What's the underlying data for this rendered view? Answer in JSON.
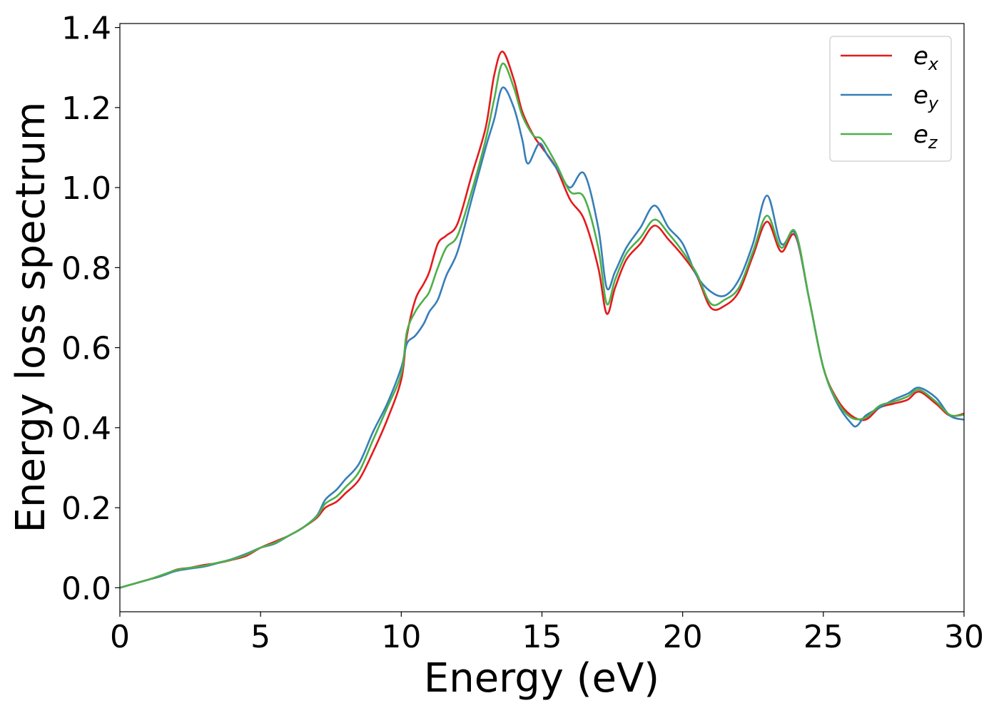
{
  "chart_data": {
    "type": "line",
    "xlabel": "Energy (eV)",
    "ylabel": "Energy loss spectrum",
    "xlim": [
      0,
      30
    ],
    "ylim": [
      -0.06,
      1.41
    ],
    "x_ticks": [
      0,
      5,
      10,
      15,
      20,
      25,
      30
    ],
    "x_tick_labels": [
      "0",
      "5",
      "10",
      "15",
      "20",
      "25",
      "30"
    ],
    "y_ticks": [
      0.0,
      0.2,
      0.4,
      0.6,
      0.8,
      1.0,
      1.2,
      1.4
    ],
    "y_tick_labels": [
      "0.0",
      "0.2",
      "0.4",
      "0.6",
      "0.8",
      "1.0",
      "1.2",
      "1.4"
    ],
    "grid": false,
    "legend_position": "top-right",
    "series": [
      {
        "name": "e_x",
        "legend_base": "e",
        "legend_sub": "x",
        "color": "#e41a1c",
        "points": [
          [
            0,
            0.0
          ],
          [
            0.5,
            0.01
          ],
          [
            1,
            0.02
          ],
          [
            1.5,
            0.03
          ],
          [
            2,
            0.045
          ],
          [
            2.5,
            0.05
          ],
          [
            3,
            0.057
          ],
          [
            3.5,
            0.062
          ],
          [
            4,
            0.07
          ],
          [
            4.5,
            0.08
          ],
          [
            5,
            0.1
          ],
          [
            5.5,
            0.115
          ],
          [
            6,
            0.13
          ],
          [
            6.5,
            0.15
          ],
          [
            7,
            0.175
          ],
          [
            7.3,
            0.2
          ],
          [
            7.7,
            0.215
          ],
          [
            8,
            0.235
          ],
          [
            8.5,
            0.27
          ],
          [
            9,
            0.34
          ],
          [
            9.5,
            0.42
          ],
          [
            10,
            0.52
          ],
          [
            10.2,
            0.63
          ],
          [
            10.5,
            0.72
          ],
          [
            10.8,
            0.76
          ],
          [
            11,
            0.79
          ],
          [
            11.3,
            0.86
          ],
          [
            11.6,
            0.88
          ],
          [
            12,
            0.91
          ],
          [
            12.5,
            1.03
          ],
          [
            13,
            1.15
          ],
          [
            13.3,
            1.28
          ],
          [
            13.6,
            1.34
          ],
          [
            14,
            1.27
          ],
          [
            14.3,
            1.19
          ],
          [
            14.7,
            1.13
          ],
          [
            15,
            1.1
          ],
          [
            15.5,
            1.05
          ],
          [
            16,
            0.97
          ],
          [
            16.5,
            0.92
          ],
          [
            17,
            0.8
          ],
          [
            17.3,
            0.685
          ],
          [
            17.6,
            0.75
          ],
          [
            18,
            0.82
          ],
          [
            18.5,
            0.86
          ],
          [
            19,
            0.905
          ],
          [
            19.5,
            0.87
          ],
          [
            20,
            0.83
          ],
          [
            20.5,
            0.78
          ],
          [
            21,
            0.7
          ],
          [
            21.5,
            0.705
          ],
          [
            22,
            0.74
          ],
          [
            22.5,
            0.83
          ],
          [
            23,
            0.915
          ],
          [
            23.5,
            0.84
          ],
          [
            24,
            0.88
          ],
          [
            24.5,
            0.72
          ],
          [
            25,
            0.55
          ],
          [
            25.5,
            0.47
          ],
          [
            26,
            0.43
          ],
          [
            26.5,
            0.42
          ],
          [
            27,
            0.45
          ],
          [
            27.5,
            0.46
          ],
          [
            28,
            0.47
          ],
          [
            28.4,
            0.49
          ],
          [
            29,
            0.46
          ],
          [
            29.5,
            0.43
          ],
          [
            30,
            0.435
          ]
        ]
      },
      {
        "name": "e_y",
        "legend_base": "e",
        "legend_sub": "y",
        "color": "#377eb8",
        "points": [
          [
            0,
            0.0
          ],
          [
            0.5,
            0.01
          ],
          [
            1,
            0.02
          ],
          [
            1.5,
            0.03
          ],
          [
            2,
            0.042
          ],
          [
            2.5,
            0.048
          ],
          [
            3,
            0.053
          ],
          [
            3.5,
            0.062
          ],
          [
            4,
            0.072
          ],
          [
            4.5,
            0.085
          ],
          [
            5,
            0.1
          ],
          [
            5.5,
            0.11
          ],
          [
            6,
            0.13
          ],
          [
            6.5,
            0.15
          ],
          [
            7,
            0.18
          ],
          [
            7.3,
            0.22
          ],
          [
            7.7,
            0.245
          ],
          [
            8,
            0.27
          ],
          [
            8.5,
            0.31
          ],
          [
            9,
            0.39
          ],
          [
            9.5,
            0.46
          ],
          [
            10,
            0.55
          ],
          [
            10.2,
            0.61
          ],
          [
            10.5,
            0.63
          ],
          [
            10.8,
            0.66
          ],
          [
            11,
            0.69
          ],
          [
            11.3,
            0.72
          ],
          [
            11.6,
            0.78
          ],
          [
            12,
            0.84
          ],
          [
            12.5,
            0.97
          ],
          [
            13,
            1.1
          ],
          [
            13.3,
            1.17
          ],
          [
            13.6,
            1.25
          ],
          [
            14,
            1.2
          ],
          [
            14.3,
            1.12
          ],
          [
            14.5,
            1.06
          ],
          [
            14.9,
            1.11
          ],
          [
            15.2,
            1.08
          ],
          [
            15.6,
            1.04
          ],
          [
            16,
            1.0
          ],
          [
            16.5,
            1.035
          ],
          [
            17,
            0.9
          ],
          [
            17.3,
            0.75
          ],
          [
            17.6,
            0.79
          ],
          [
            18,
            0.85
          ],
          [
            18.5,
            0.9
          ],
          [
            19,
            0.955
          ],
          [
            19.5,
            0.9
          ],
          [
            20,
            0.86
          ],
          [
            20.5,
            0.78
          ],
          [
            21,
            0.74
          ],
          [
            21.5,
            0.73
          ],
          [
            22,
            0.77
          ],
          [
            22.5,
            0.86
          ],
          [
            23,
            0.98
          ],
          [
            23.5,
            0.86
          ],
          [
            24,
            0.885
          ],
          [
            24.5,
            0.72
          ],
          [
            25,
            0.55
          ],
          [
            25.5,
            0.46
          ],
          [
            26,
            0.41
          ],
          [
            26.2,
            0.405
          ],
          [
            26.5,
            0.43
          ],
          [
            27,
            0.45
          ],
          [
            27.5,
            0.47
          ],
          [
            28,
            0.485
          ],
          [
            28.4,
            0.5
          ],
          [
            29,
            0.475
          ],
          [
            29.5,
            0.43
          ],
          [
            30,
            0.42
          ]
        ]
      },
      {
        "name": "e_z",
        "legend_base": "e",
        "legend_sub": "z",
        "color": "#4daf4a",
        "points": [
          [
            0,
            0.0
          ],
          [
            0.5,
            0.01
          ],
          [
            1,
            0.02
          ],
          [
            1.5,
            0.032
          ],
          [
            2,
            0.044
          ],
          [
            2.5,
            0.05
          ],
          [
            3,
            0.055
          ],
          [
            3.5,
            0.063
          ],
          [
            4,
            0.071
          ],
          [
            4.5,
            0.083
          ],
          [
            5,
            0.1
          ],
          [
            5.5,
            0.112
          ],
          [
            6,
            0.13
          ],
          [
            6.5,
            0.15
          ],
          [
            7,
            0.178
          ],
          [
            7.3,
            0.21
          ],
          [
            7.7,
            0.228
          ],
          [
            8,
            0.25
          ],
          [
            8.5,
            0.29
          ],
          [
            9,
            0.37
          ],
          [
            9.5,
            0.45
          ],
          [
            10,
            0.535
          ],
          [
            10.2,
            0.64
          ],
          [
            10.5,
            0.69
          ],
          [
            10.8,
            0.72
          ],
          [
            11,
            0.74
          ],
          [
            11.3,
            0.8
          ],
          [
            11.6,
            0.85
          ],
          [
            12,
            0.88
          ],
          [
            12.5,
            0.99
          ],
          [
            13,
            1.12
          ],
          [
            13.3,
            1.22
          ],
          [
            13.6,
            1.31
          ],
          [
            14,
            1.25
          ],
          [
            14.3,
            1.18
          ],
          [
            14.7,
            1.13
          ],
          [
            15,
            1.12
          ],
          [
            15.5,
            1.06
          ],
          [
            16,
            0.99
          ],
          [
            16.5,
            0.975
          ],
          [
            17,
            0.85
          ],
          [
            17.3,
            0.71
          ],
          [
            17.6,
            0.77
          ],
          [
            18,
            0.835
          ],
          [
            18.5,
            0.875
          ],
          [
            19,
            0.92
          ],
          [
            19.5,
            0.885
          ],
          [
            20,
            0.84
          ],
          [
            20.5,
            0.785
          ],
          [
            21,
            0.71
          ],
          [
            21.5,
            0.72
          ],
          [
            22,
            0.75
          ],
          [
            22.5,
            0.84
          ],
          [
            23,
            0.93
          ],
          [
            23.5,
            0.85
          ],
          [
            24,
            0.89
          ],
          [
            24.5,
            0.72
          ],
          [
            25,
            0.55
          ],
          [
            25.5,
            0.465
          ],
          [
            26,
            0.425
          ],
          [
            26.5,
            0.425
          ],
          [
            27,
            0.455
          ],
          [
            27.5,
            0.465
          ],
          [
            28,
            0.478
          ],
          [
            28.4,
            0.495
          ],
          [
            29,
            0.465
          ],
          [
            29.5,
            0.432
          ],
          [
            30,
            0.432
          ]
        ]
      }
    ]
  }
}
